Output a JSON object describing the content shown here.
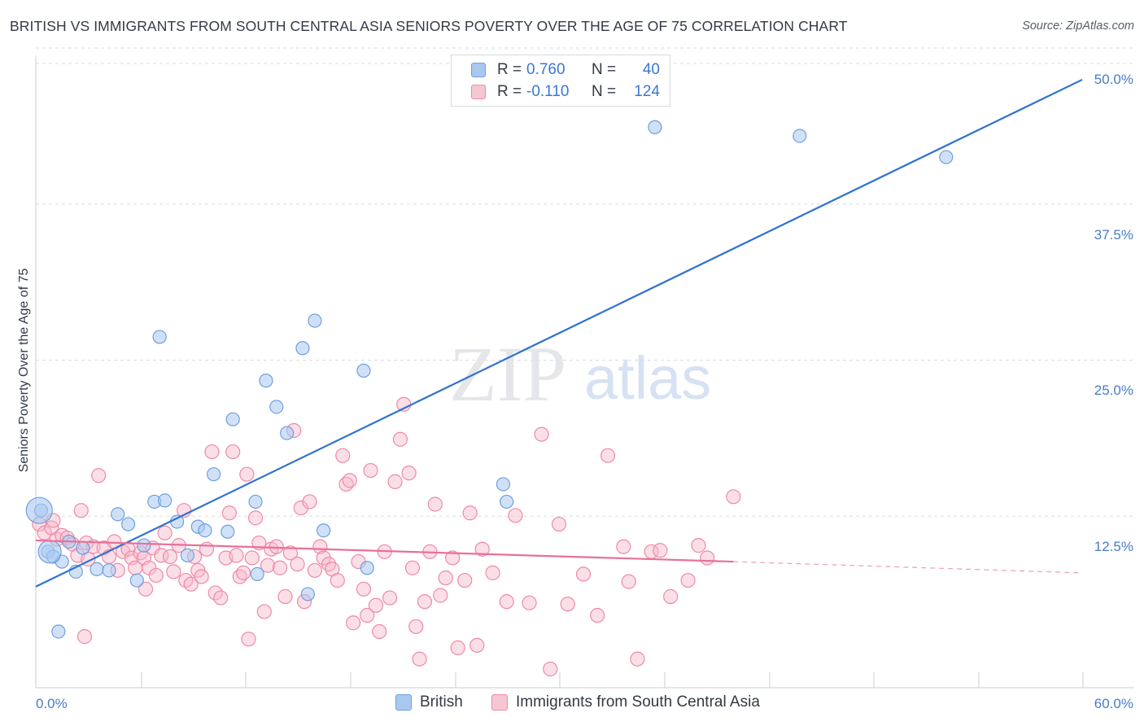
{
  "title": "BRITISH VS IMMIGRANTS FROM SOUTH CENTRAL ASIA SENIORS POVERTY OVER THE AGE OF 75 CORRELATION CHART",
  "source": "Source: ZipAtlas.com",
  "watermark": {
    "zip": "ZIP",
    "atlas": "atlas"
  },
  "colors": {
    "british_fill": "#a9c8f0",
    "british_stroke": "#6f9fe0",
    "british_line": "#2f72d0",
    "asia_fill": "#f7b8c9",
    "asia_stroke": "#ee8aa6",
    "asia_line": "#e8709a",
    "tick_label": "#4a7cc7",
    "grid": "#d9dce1"
  },
  "legend": {
    "rows": [
      {
        "r_label": "R =",
        "r_value": "0.760",
        "n_label": "N =",
        "n_value": "40"
      },
      {
        "r_label": "R =",
        "r_value": "-0.110",
        "n_label": "N =",
        "n_value": "124"
      }
    ]
  },
  "bottom_legend": {
    "british": "British",
    "asia": "Immigrants from South Central Asia"
  },
  "chart_data": {
    "type": "scatter",
    "title": "BRITISH VS IMMIGRANTS FROM SOUTH CENTRAL ASIA SENIORS POVERTY OVER THE AGE OF 75 CORRELATION CHART",
    "xlabel": "",
    "ylabel": "Seniors Poverty Over the Age of 75",
    "xlim": [
      0,
      60
    ],
    "ylim": [
      0,
      50
    ],
    "x_tick_labels": [
      "0.0%",
      "60.0%"
    ],
    "y_ticks": [
      12.5,
      25.0,
      37.5,
      50.0
    ],
    "y_tick_labels": [
      "12.5%",
      "25.0%",
      "37.5%",
      "50.0%"
    ],
    "grid": true,
    "legend_position": "top-center",
    "series": [
      {
        "name": "British",
        "r": 0.76,
        "n": 40,
        "trend": {
          "x": [
            0,
            60
          ],
          "y": [
            8.1,
            48.7
          ]
        },
        "points": [
          [
            0.3,
            14.2
          ],
          [
            0.7,
            10.9
          ],
          [
            1.0,
            10.5
          ],
          [
            1.5,
            10.1
          ],
          [
            1.9,
            11.7
          ],
          [
            2.3,
            9.3
          ],
          [
            2.7,
            11.2
          ],
          [
            3.5,
            9.5
          ],
          [
            4.2,
            9.4
          ],
          [
            4.7,
            13.9
          ],
          [
            5.3,
            13.1
          ],
          [
            5.8,
            8.6
          ],
          [
            6.2,
            11.4
          ],
          [
            6.8,
            14.9
          ],
          [
            7.1,
            28.1
          ],
          [
            7.4,
            15.0
          ],
          [
            8.1,
            13.3
          ],
          [
            8.7,
            10.6
          ],
          [
            9.3,
            12.9
          ],
          [
            9.7,
            12.6
          ],
          [
            10.2,
            17.1
          ],
          [
            11.0,
            12.5
          ],
          [
            11.3,
            21.5
          ],
          [
            12.6,
            14.9
          ],
          [
            12.7,
            9.1
          ],
          [
            13.2,
            24.6
          ],
          [
            13.8,
            22.5
          ],
          [
            14.4,
            20.4
          ],
          [
            15.3,
            27.2
          ],
          [
            15.6,
            7.5
          ],
          [
            16.0,
            29.4
          ],
          [
            16.5,
            12.6
          ],
          [
            18.8,
            25.4
          ],
          [
            19.0,
            9.6
          ],
          [
            26.8,
            16.3
          ],
          [
            27.0,
            14.9
          ],
          [
            35.5,
            44.9
          ],
          [
            43.8,
            44.2
          ],
          [
            52.2,
            42.5
          ],
          [
            1.3,
            4.5
          ]
        ],
        "large_points": [
          [
            0.2,
            14.2
          ],
          [
            0.8,
            10.9
          ]
        ]
      },
      {
        "name": "Immigrants from South Central Asia",
        "r": -0.11,
        "n": 124,
        "trend": {
          "x": [
            0,
            40
          ],
          "y": [
            11.8,
            10.1
          ]
        },
        "trend_dashed": {
          "x": [
            40,
            60
          ],
          "y": [
            10.1,
            9.2
          ]
        },
        "points": [
          [
            0.2,
            13.1
          ],
          [
            0.5,
            12.4
          ],
          [
            0.9,
            12.8
          ],
          [
            1.2,
            11.9
          ],
          [
            1.5,
            12.2
          ],
          [
            1.8,
            12.0
          ],
          [
            2.1,
            11.5
          ],
          [
            2.4,
            10.6
          ],
          [
            2.6,
            14.2
          ],
          [
            2.9,
            11.6
          ],
          [
            3.3,
            11.3
          ],
          [
            3.6,
            17.0
          ],
          [
            3.9,
            11.2
          ],
          [
            4.2,
            10.5
          ],
          [
            4.5,
            11.7
          ],
          [
            4.7,
            9.4
          ],
          [
            5.0,
            10.9
          ],
          [
            5.3,
            11.1
          ],
          [
            5.5,
            10.4
          ],
          [
            5.7,
            9.6
          ],
          [
            6.0,
            10.8
          ],
          [
            6.2,
            10.4
          ],
          [
            6.5,
            9.6
          ],
          [
            6.7,
            11.2
          ],
          [
            6.9,
            9.0
          ],
          [
            7.2,
            10.6
          ],
          [
            7.4,
            12.4
          ],
          [
            7.7,
            10.5
          ],
          [
            7.9,
            9.3
          ],
          [
            8.2,
            11.4
          ],
          [
            8.5,
            14.2
          ],
          [
            8.6,
            8.6
          ],
          [
            8.9,
            8.3
          ],
          [
            9.1,
            10.5
          ],
          [
            9.3,
            9.4
          ],
          [
            9.5,
            8.9
          ],
          [
            9.8,
            11.1
          ],
          [
            10.1,
            18.9
          ],
          [
            10.3,
            7.6
          ],
          [
            10.6,
            7.2
          ],
          [
            10.9,
            10.4
          ],
          [
            11.1,
            14.0
          ],
          [
            11.3,
            18.9
          ],
          [
            11.5,
            10.6
          ],
          [
            11.7,
            8.9
          ],
          [
            11.9,
            9.2
          ],
          [
            12.1,
            17.1
          ],
          [
            12.4,
            10.4
          ],
          [
            12.6,
            13.6
          ],
          [
            12.8,
            11.6
          ],
          [
            13.1,
            6.1
          ],
          [
            13.3,
            9.8
          ],
          [
            13.5,
            11.1
          ],
          [
            13.8,
            11.3
          ],
          [
            14.0,
            9.6
          ],
          [
            14.3,
            7.3
          ],
          [
            14.6,
            10.8
          ],
          [
            14.8,
            20.6
          ],
          [
            15.0,
            9.9
          ],
          [
            15.2,
            14.4
          ],
          [
            15.4,
            6.9
          ],
          [
            15.7,
            14.9
          ],
          [
            16.0,
            9.4
          ],
          [
            16.3,
            11.3
          ],
          [
            16.5,
            10.4
          ],
          [
            16.8,
            9.9
          ],
          [
            17.0,
            9.5
          ],
          [
            17.3,
            8.6
          ],
          [
            17.6,
            18.6
          ],
          [
            17.8,
            16.3
          ],
          [
            18.0,
            16.6
          ],
          [
            18.2,
            5.2
          ],
          [
            18.5,
            10.1
          ],
          [
            18.8,
            7.9
          ],
          [
            19.0,
            5.8
          ],
          [
            19.2,
            17.4
          ],
          [
            19.5,
            6.6
          ],
          [
            19.7,
            4.5
          ],
          [
            20.0,
            10.9
          ],
          [
            20.3,
            7.2
          ],
          [
            20.6,
            16.5
          ],
          [
            20.9,
            19.9
          ],
          [
            21.1,
            22.7
          ],
          [
            21.4,
            17.2
          ],
          [
            21.6,
            9.6
          ],
          [
            21.8,
            4.9
          ],
          [
            22.0,
            2.3
          ],
          [
            22.3,
            6.9
          ],
          [
            22.6,
            10.9
          ],
          [
            22.9,
            14.7
          ],
          [
            23.2,
            7.4
          ],
          [
            23.5,
            8.8
          ],
          [
            23.9,
            10.4
          ],
          [
            24.2,
            3.2
          ],
          [
            24.6,
            8.6
          ],
          [
            24.9,
            14.0
          ],
          [
            25.3,
            3.4
          ],
          [
            25.6,
            11.1
          ],
          [
            26.2,
            9.2
          ],
          [
            27.0,
            6.9
          ],
          [
            27.5,
            13.8
          ],
          [
            28.3,
            6.8
          ],
          [
            29.0,
            20.3
          ],
          [
            29.5,
            1.5
          ],
          [
            30.0,
            13.1
          ],
          [
            30.5,
            6.7
          ],
          [
            31.4,
            9.1
          ],
          [
            32.2,
            5.8
          ],
          [
            32.8,
            18.6
          ],
          [
            33.7,
            11.3
          ],
          [
            34.0,
            8.5
          ],
          [
            34.5,
            2.3
          ],
          [
            35.3,
            10.9
          ],
          [
            35.8,
            11.0
          ],
          [
            36.4,
            7.3
          ],
          [
            37.4,
            8.6
          ],
          [
            38.0,
            11.4
          ],
          [
            38.5,
            10.4
          ],
          [
            40.0,
            15.3
          ],
          [
            1.0,
            13.4
          ],
          [
            2.8,
            4.1
          ],
          [
            6.3,
            7.9
          ],
          [
            12.2,
            3.9
          ],
          [
            3.0,
            10.3
          ]
        ]
      }
    ]
  }
}
